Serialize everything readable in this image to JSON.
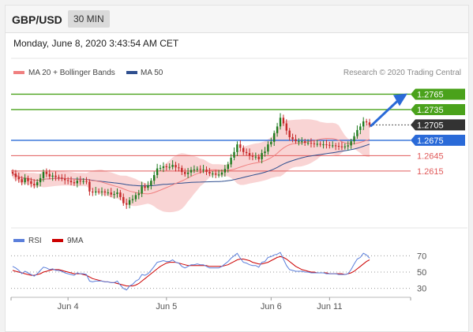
{
  "header": {
    "pair": "GBP/USD",
    "timeframe": "30 MIN"
  },
  "datetime": "Monday, June 8, 2020 3:43:54 AM CET",
  "credit": "Research © 2020 Trading Central",
  "colors": {
    "resistance": "#4aa21b",
    "support": "#e05a5a",
    "pivot": "#2a6ad8",
    "current": "#333333",
    "ma50": "#2f4f8f",
    "ma20": "#f08080",
    "bollinger": "#f7c6c6",
    "rsi": "#5b7fdb",
    "rsi_ma": "#cc0000",
    "up_candle": "#1e7b1e",
    "down_candle": "#c62828"
  },
  "chart_data": [
    {
      "type": "candlestick",
      "legend": [
        {
          "name": "MA 20 + Bollinger Bands",
          "color": "#f08080"
        },
        {
          "name": "MA 50",
          "color": "#2f4f8f"
        }
      ],
      "x_ticks": [
        "Jun 4",
        "Jun 5",
        "Jun 6",
        "Jun 11"
      ],
      "ylim": [
        1.251,
        1.2795
      ],
      "levels": [
        {
          "value": 1.2765,
          "label": "1.2765",
          "kind": "resistance"
        },
        {
          "value": 1.2735,
          "label": "1.2735",
          "kind": "resistance"
        },
        {
          "value": 1.2705,
          "label": "1.2705",
          "kind": "current"
        },
        {
          "value": 1.2675,
          "label": "1.2675",
          "kind": "pivot"
        },
        {
          "value": 1.2645,
          "label": "1.2645",
          "kind": "support"
        },
        {
          "value": 1.2615,
          "label": "1.2615",
          "kind": "support"
        }
      ],
      "close": [
        1.261,
        1.2603,
        1.2599,
        1.2593,
        1.2601,
        1.2595,
        1.259,
        1.2587,
        1.2593,
        1.2601,
        1.2613,
        1.2609,
        1.2604,
        1.2606,
        1.2603,
        1.2602,
        1.26,
        1.2597,
        1.2596,
        1.2593,
        1.2591,
        1.2596,
        1.2595,
        1.2595,
        1.2594,
        1.2575,
        1.2573,
        1.2575,
        1.2574,
        1.2575,
        1.2573,
        1.2573,
        1.2569,
        1.257,
        1.2573,
        1.2564,
        1.2552,
        1.2549,
        1.2558,
        1.256,
        1.2568,
        1.2571,
        1.2585,
        1.2582,
        1.2587,
        1.2596,
        1.2607,
        1.262,
        1.2621,
        1.2624,
        1.2623,
        1.2623,
        1.2627,
        1.2622,
        1.2621,
        1.2613,
        1.2609,
        1.2612,
        1.2617,
        1.2618,
        1.2619,
        1.2618,
        1.2618,
        1.2613,
        1.261,
        1.261,
        1.2608,
        1.2608,
        1.2612,
        1.2619,
        1.2628,
        1.2641,
        1.2652,
        1.2667,
        1.266,
        1.2652,
        1.265,
        1.2645,
        1.2643,
        1.2643,
        1.2638,
        1.265,
        1.2653,
        1.2667,
        1.2672,
        1.2689,
        1.2702,
        1.2719,
        1.2708,
        1.2694,
        1.2681,
        1.2677,
        1.2673,
        1.2673,
        1.2673,
        1.267,
        1.267,
        1.2669,
        1.2668,
        1.2668,
        1.2667,
        1.2667,
        1.2666,
        1.2665,
        1.2665,
        1.2664,
        1.2663,
        1.2662,
        1.2663,
        1.2665,
        1.2673,
        1.2683,
        1.2695,
        1.2702,
        1.2712,
        1.271,
        1.2705
      ]
    },
    {
      "type": "line",
      "legend": [
        {
          "name": "RSI",
          "color": "#5b7fdb"
        },
        {
          "name": "9MA",
          "color": "#cc0000"
        }
      ],
      "ylim": [
        20,
        80
      ],
      "y_ticks": [
        70,
        50,
        30
      ],
      "rsi": [
        57,
        55,
        52,
        48,
        51,
        49,
        47,
        45,
        48,
        52,
        56,
        55,
        53,
        54,
        52,
        52,
        51,
        49,
        48,
        47,
        46,
        49,
        48,
        48,
        47,
        39,
        38,
        39,
        39,
        39,
        38,
        38,
        37,
        37,
        39,
        34,
        30,
        28,
        33,
        35,
        39,
        41,
        47,
        46,
        48,
        52,
        57,
        62,
        63,
        64,
        63,
        63,
        65,
        62,
        61,
        57,
        55,
        57,
        59,
        59,
        60,
        59,
        59,
        57,
        55,
        55,
        55,
        55,
        57,
        60,
        63,
        67,
        70,
        73,
        67,
        62,
        61,
        59,
        58,
        58,
        56,
        62,
        63,
        68,
        69,
        71,
        72,
        74,
        66,
        58,
        53,
        52,
        51,
        51,
        51,
        50,
        50,
        49,
        49,
        49,
        49,
        49,
        48,
        48,
        48,
        48,
        47,
        47,
        47,
        48,
        53,
        60,
        66,
        68,
        73,
        71,
        67
      ],
      "ma9": [
        52,
        51,
        50,
        49,
        48,
        47,
        46,
        46,
        47,
        48,
        50,
        51,
        52,
        53,
        53,
        53,
        52,
        51,
        50,
        49,
        48,
        48,
        48,
        47,
        46,
        44,
        42,
        41,
        40,
        39,
        38,
        38,
        37,
        37,
        36,
        35,
        34,
        33,
        33,
        33,
        34,
        36,
        39,
        42,
        45,
        48,
        51,
        54,
        57,
        59,
        61,
        62,
        62,
        62,
        61,
        60,
        59,
        58,
        58,
        58,
        58,
        58,
        58,
        58,
        57,
        57,
        57,
        57,
        57,
        58,
        59,
        61,
        63,
        65,
        66,
        66,
        65,
        64,
        62,
        61,
        60,
        60,
        61,
        62,
        64,
        66,
        68,
        69,
        68,
        66,
        63,
        60,
        57,
        55,
        53,
        52,
        51,
        50,
        50,
        49,
        49,
        49,
        49,
        48,
        48,
        48,
        48,
        48,
        47,
        48,
        49,
        51,
        54,
        57,
        60,
        63,
        65
      ]
    }
  ]
}
